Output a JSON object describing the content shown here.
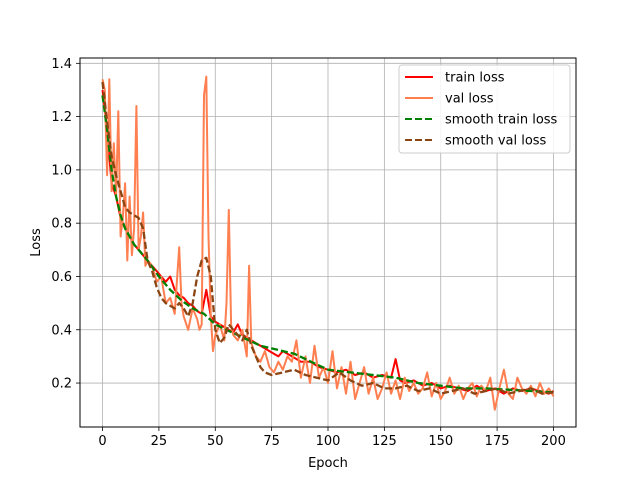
{
  "chart_data": {
    "type": "line",
    "xlabel": "Epoch",
    "ylabel": "Loss",
    "xlim": [
      -10,
      210
    ],
    "ylim": [
      0.035,
      1.42
    ],
    "xticks": [
      0,
      25,
      50,
      75,
      100,
      125,
      150,
      175,
      200
    ],
    "yticks": [
      0.2,
      0.4,
      0.6,
      0.8,
      1.0,
      1.2,
      1.4
    ],
    "yticklabels": [
      "0.2",
      "0.4",
      "0.6",
      "0.8",
      "1.0",
      "1.2",
      "1.4"
    ],
    "grid": true,
    "legend_position": "top-right",
    "series": [
      {
        "name": "train loss",
        "color": "#ff0000",
        "style": "solid",
        "x": [
          0,
          2,
          4,
          6,
          8,
          10,
          12,
          14,
          16,
          18,
          20,
          22,
          24,
          26,
          28,
          30,
          32,
          34,
          36,
          38,
          40,
          42,
          44,
          46,
          48,
          50,
          52,
          54,
          56,
          58,
          60,
          62,
          64,
          66,
          68,
          70,
          72,
          74,
          76,
          78,
          80,
          84,
          88,
          92,
          96,
          100,
          104,
          108,
          112,
          116,
          120,
          124,
          128,
          130,
          132,
          134,
          138,
          142,
          146,
          150,
          154,
          158,
          162,
          166,
          170,
          174,
          178,
          182,
          186,
          190,
          194,
          198,
          200
        ],
        "values": [
          1.3,
          1.15,
          0.95,
          0.9,
          0.82,
          0.78,
          0.75,
          0.72,
          0.7,
          0.68,
          0.66,
          0.64,
          0.62,
          0.6,
          0.58,
          0.6,
          0.55,
          0.53,
          0.52,
          0.5,
          0.49,
          0.47,
          0.46,
          0.55,
          0.45,
          0.43,
          0.42,
          0.41,
          0.4,
          0.39,
          0.42,
          0.38,
          0.37,
          0.36,
          0.35,
          0.34,
          0.33,
          0.32,
          0.31,
          0.3,
          0.32,
          0.3,
          0.28,
          0.28,
          0.26,
          0.25,
          0.24,
          0.25,
          0.23,
          0.24,
          0.22,
          0.23,
          0.22,
          0.29,
          0.21,
          0.2,
          0.21,
          0.19,
          0.2,
          0.18,
          0.19,
          0.18,
          0.17,
          0.19,
          0.17,
          0.18,
          0.16,
          0.18,
          0.17,
          0.18,
          0.17,
          0.16,
          0.17
        ]
      },
      {
        "name": "val loss",
        "color": "#ff7f50",
        "style": "solid",
        "x": [
          0,
          1,
          2,
          3,
          4,
          5,
          6,
          7,
          8,
          9,
          10,
          11,
          12,
          13,
          14,
          15,
          16,
          17,
          18,
          19,
          20,
          22,
          24,
          26,
          28,
          30,
          32,
          34,
          35,
          36,
          38,
          40,
          42,
          43,
          44,
          45,
          46,
          47,
          48,
          49,
          50,
          52,
          54,
          55,
          56,
          57,
          58,
          60,
          62,
          64,
          65,
          66,
          68,
          70,
          72,
          74,
          76,
          78,
          80,
          82,
          84,
          86,
          88,
          90,
          92,
          94,
          96,
          98,
          100,
          102,
          104,
          106,
          108,
          110,
          112,
          114,
          116,
          118,
          120,
          122,
          124,
          126,
          128,
          130,
          132,
          134,
          136,
          138,
          140,
          142,
          144,
          146,
          148,
          150,
          152,
          154,
          156,
          158,
          160,
          162,
          164,
          166,
          168,
          170,
          172,
          174,
          176,
          178,
          180,
          182,
          184,
          186,
          188,
          190,
          192,
          194,
          196,
          198,
          200
        ],
        "values": [
          1.34,
          1.3,
          0.98,
          1.34,
          0.92,
          1.1,
          0.9,
          1.22,
          0.75,
          0.82,
          0.95,
          0.66,
          0.9,
          0.68,
          0.78,
          1.24,
          0.7,
          0.75,
          0.84,
          0.64,
          0.66,
          0.64,
          0.58,
          0.6,
          0.5,
          0.52,
          0.46,
          0.71,
          0.5,
          0.45,
          0.4,
          0.48,
          0.44,
          0.4,
          0.42,
          1.28,
          1.35,
          0.75,
          0.45,
          0.32,
          0.38,
          0.42,
          0.36,
          0.5,
          0.85,
          0.42,
          0.38,
          0.36,
          0.4,
          0.3,
          0.64,
          0.35,
          0.3,
          0.28,
          0.32,
          0.26,
          0.24,
          0.28,
          0.25,
          0.3,
          0.28,
          0.36,
          0.22,
          0.3,
          0.2,
          0.34,
          0.22,
          0.26,
          0.2,
          0.32,
          0.18,
          0.26,
          0.16,
          0.28,
          0.14,
          0.2,
          0.26,
          0.16,
          0.22,
          0.14,
          0.18,
          0.24,
          0.16,
          0.21,
          0.14,
          0.22,
          0.17,
          0.2,
          0.16,
          0.18,
          0.24,
          0.15,
          0.2,
          0.14,
          0.17,
          0.22,
          0.16,
          0.19,
          0.14,
          0.18,
          0.2,
          0.15,
          0.19,
          0.17,
          0.22,
          0.1,
          0.18,
          0.25,
          0.16,
          0.14,
          0.22,
          0.18,
          0.16,
          0.19,
          0.15,
          0.2,
          0.16,
          0.18,
          0.15
        ]
      },
      {
        "name": "smooth train loss",
        "color": "#008000",
        "style": "dashed",
        "x": [
          0,
          2,
          4,
          6,
          8,
          10,
          12,
          14,
          16,
          18,
          20,
          25,
          30,
          35,
          40,
          45,
          50,
          55,
          60,
          65,
          70,
          75,
          80,
          85,
          90,
          95,
          100,
          110,
          120,
          130,
          140,
          150,
          160,
          170,
          180,
          190,
          200
        ],
        "values": [
          1.28,
          1.15,
          1.0,
          0.9,
          0.83,
          0.78,
          0.75,
          0.72,
          0.7,
          0.68,
          0.66,
          0.6,
          0.55,
          0.51,
          0.48,
          0.46,
          0.42,
          0.4,
          0.38,
          0.36,
          0.34,
          0.33,
          0.32,
          0.31,
          0.29,
          0.27,
          0.25,
          0.24,
          0.23,
          0.22,
          0.2,
          0.19,
          0.18,
          0.18,
          0.175,
          0.17,
          0.165
        ]
      },
      {
        "name": "smooth val loss",
        "color": "#8b4513",
        "style": "dashed",
        "x": [
          0,
          2,
          4,
          6,
          8,
          10,
          12,
          14,
          16,
          18,
          20,
          22,
          24,
          26,
          28,
          30,
          32,
          34,
          36,
          38,
          40,
          42,
          44,
          46,
          48,
          50,
          52,
          54,
          56,
          58,
          60,
          62,
          64,
          66,
          68,
          70,
          72,
          75,
          80,
          85,
          90,
          95,
          100,
          105,
          110,
          115,
          120,
          125,
          130,
          135,
          140,
          145,
          150,
          155,
          160,
          165,
          170,
          175,
          180,
          185,
          190,
          195,
          200
        ],
        "values": [
          1.33,
          1.18,
          1.05,
          0.98,
          0.92,
          0.86,
          0.84,
          0.83,
          0.82,
          0.78,
          0.66,
          0.62,
          0.56,
          0.52,
          0.5,
          0.49,
          0.48,
          0.5,
          0.48,
          0.45,
          0.5,
          0.6,
          0.66,
          0.67,
          0.6,
          0.4,
          0.35,
          0.37,
          0.42,
          0.4,
          0.38,
          0.36,
          0.4,
          0.34,
          0.3,
          0.26,
          0.24,
          0.23,
          0.24,
          0.25,
          0.23,
          0.22,
          0.21,
          0.24,
          0.21,
          0.19,
          0.2,
          0.18,
          0.18,
          0.19,
          0.17,
          0.18,
          0.16,
          0.17,
          0.18,
          0.16,
          0.17,
          0.18,
          0.16,
          0.17,
          0.18,
          0.16,
          0.165
        ]
      }
    ]
  }
}
